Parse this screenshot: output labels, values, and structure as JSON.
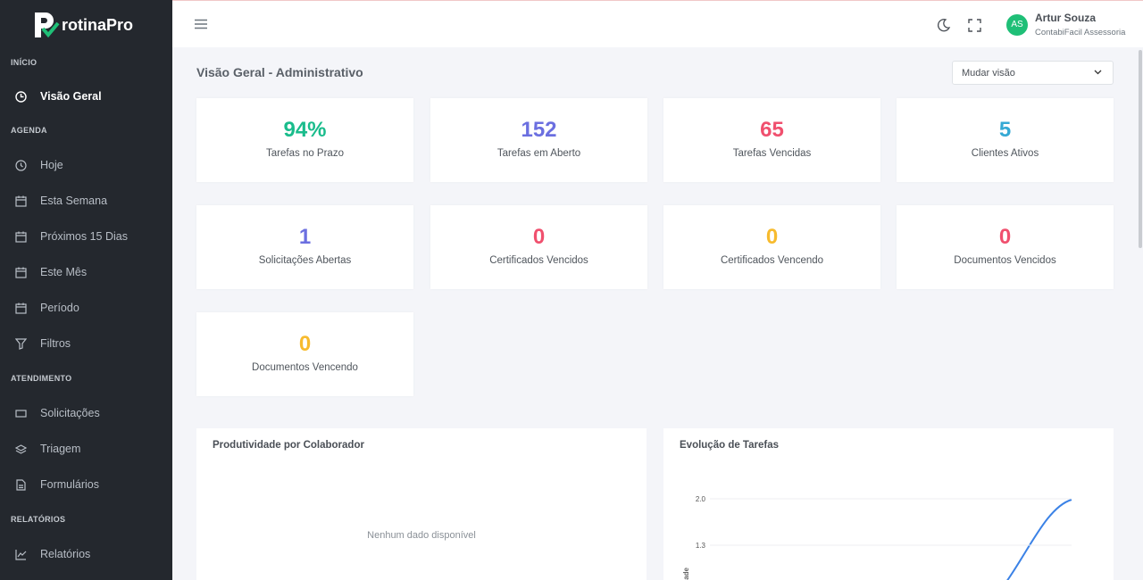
{
  "brand": {
    "name": "rotinaPro"
  },
  "sidebar": {
    "sections": [
      {
        "title": "INÍCIO",
        "items": [
          "Visão Geral"
        ]
      },
      {
        "title": "AGENDA",
        "items": [
          "Hoje",
          "Esta Semana",
          "Próximos 15 Dias",
          "Este Mês",
          "Período",
          "Filtros"
        ]
      },
      {
        "title": "ATENDIMENTO",
        "items": [
          "Solicitações",
          "Triagem",
          "Formulários"
        ]
      },
      {
        "title": "RELATÓRIOS",
        "items": [
          "Relatórios"
        ]
      }
    ]
  },
  "header": {
    "user_initials": "AS",
    "user_name": "Artur Souza",
    "user_company": "ContabiFacil Assessoria"
  },
  "page": {
    "title": "Visão Geral - Administrativo",
    "view_select": "Mudar visão"
  },
  "stats": [
    {
      "value": "94%",
      "label": "Tarefas no Prazo",
      "color": "#1abc8c"
    },
    {
      "value": "152",
      "label": "Tarefas em Aberto",
      "color": "#6b6fe0"
    },
    {
      "value": "65",
      "label": "Tarefas Vencidas",
      "color": "#f0506e"
    },
    {
      "value": "5",
      "label": "Clientes Ativos",
      "color": "#35a9d4"
    },
    {
      "value": "1",
      "label": "Solicitações Abertas",
      "color": "#6b6fe0"
    },
    {
      "value": "0",
      "label": "Certificados Vencidos",
      "color": "#f0506e"
    },
    {
      "value": "0",
      "label": "Certificados Vencendo",
      "color": "#f7bb2e"
    },
    {
      "value": "0",
      "label": "Documentos Vencidos",
      "color": "#f0506e"
    },
    {
      "value": "0",
      "label": "Documentos Vencendo",
      "color": "#f7bb2e"
    }
  ],
  "panels": [
    {
      "title": "Produtividade por Colaborador",
      "empty": "Nenhum dado disponível"
    },
    {
      "title": "Evolução de Tarefas",
      "chart": {
        "y_label": "Quantidade",
        "yticks": [
          {
            "value": 2,
            "label": "2.0"
          },
          {
            "value": 1.3,
            "label": "1.3"
          }
        ]
      }
    }
  ]
}
